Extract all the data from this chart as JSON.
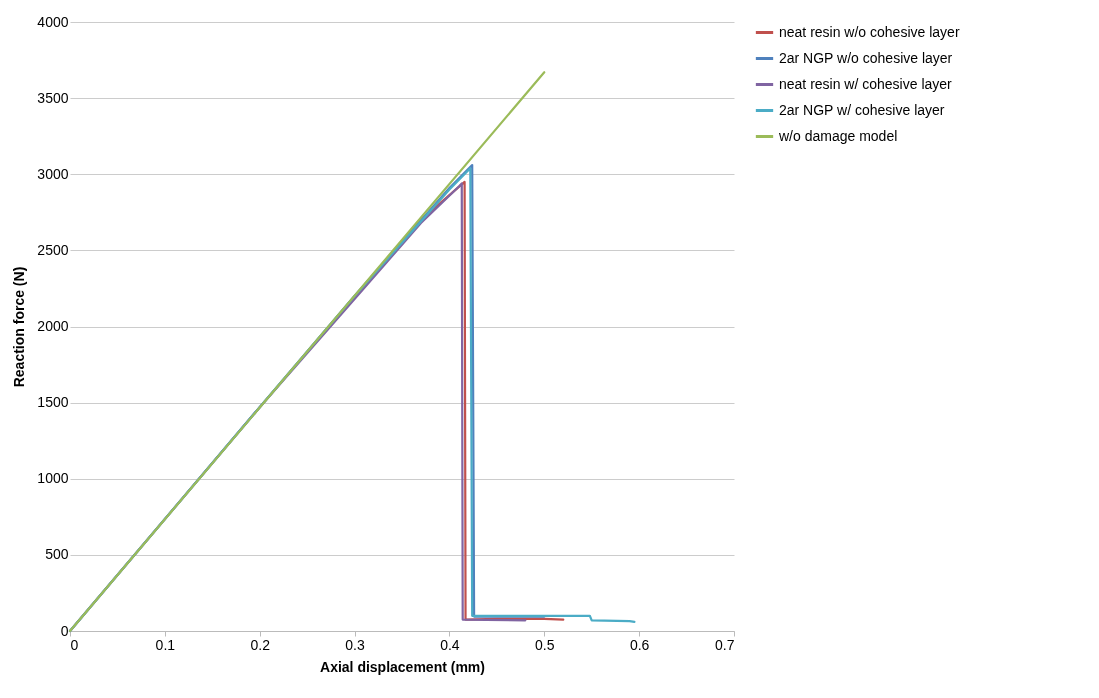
{
  "chart_data": {
    "type": "line",
    "xlabel": "Axial displacement (mm)",
    "ylabel": "Reaction force (N)",
    "xlim": [
      0,
      0.7
    ],
    "xticks": [
      0,
      0.1,
      0.2,
      0.3,
      0.4,
      0.5,
      0.6,
      0.7
    ],
    "ylim": [
      0,
      4000
    ],
    "yticks": [
      0,
      500,
      1000,
      1500,
      2000,
      2500,
      3000,
      3500,
      4000
    ],
    "grid": "y",
    "legend": "right",
    "marker": "none",
    "series": [
      {
        "name": "neat resin  w/o cohesive layer",
        "color": "#c0504d",
        "x": [
          0.3,
          0.37,
          0.416,
          0.417,
          0.45,
          0.5,
          0.52
        ],
        "values": [
          2190,
          2700,
          2950,
          75,
          80,
          80,
          75
        ]
      },
      {
        "name": "2ar NGP w/o cohesive layer",
        "color": "#4f81bd",
        "x": [
          0,
          0.2,
          0.3,
          0.4,
          0.424,
          0.426,
          0.5
        ],
        "values": [
          0,
          1470,
          2200,
          2910,
          3060,
          95,
          95
        ]
      },
      {
        "name": "neat resin  w/ cohesive layer",
        "color": "#8064a2",
        "x": [
          0,
          0.2,
          0.3,
          0.37,
          0.41,
          0.413,
          0.414,
          0.48
        ],
        "values": [
          0,
          1470,
          2180,
          2680,
          2920,
          2940,
          75,
          70
        ]
      },
      {
        "name": "2ar NGP w/ cohesive layer",
        "color": "#4bacc6",
        "x": [
          0,
          0.2,
          0.3,
          0.4,
          0.422,
          0.424,
          0.548,
          0.55,
          0.59,
          0.595
        ],
        "values": [
          0,
          1470,
          2200,
          2900,
          3040,
          100,
          100,
          70,
          65,
          60
        ]
      },
      {
        "name": "w/o damage model",
        "color": "#9bbb59",
        "x": [
          0,
          0.5
        ],
        "values": [
          0,
          3670
        ]
      }
    ]
  }
}
